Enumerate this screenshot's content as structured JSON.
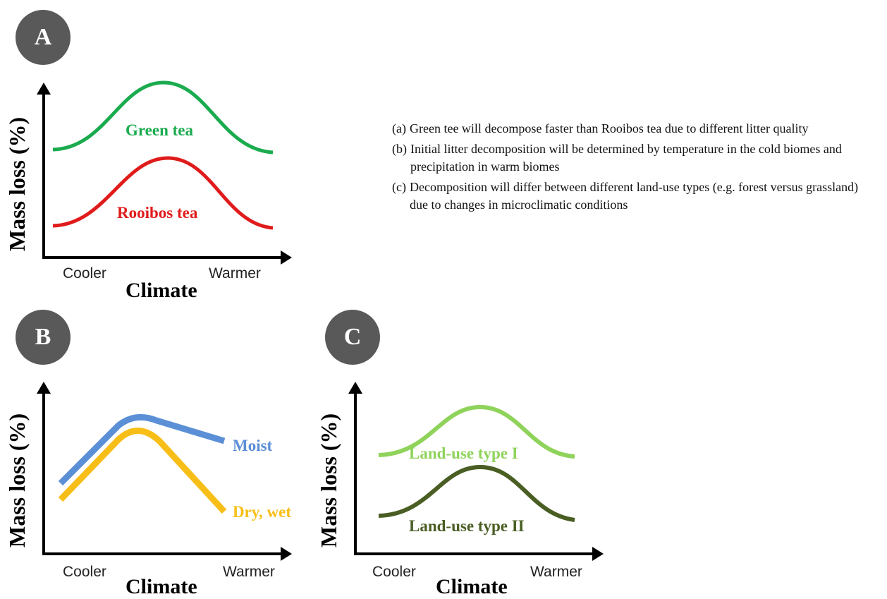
{
  "colors": {
    "green_tea": "#1aab4e",
    "rooibos_tea": "#e01b1b",
    "moist": "#5b8fd6",
    "dry_wet": "#f7be17",
    "land_use_1": "#8fd35b",
    "land_use_2": "#4a5e24",
    "badge": "#595959",
    "axis": "#000000"
  },
  "panels": {
    "a": {
      "badge": "A",
      "ylabel": "Mass loss (%)",
      "xlabel": "Climate",
      "x_ticks": [
        "Cooler",
        "Warmer"
      ],
      "curves": [
        {
          "label": "Green tea",
          "shape": "bell",
          "color": "green_tea"
        },
        {
          "label": "Rooibos tea",
          "shape": "bell",
          "color": "rooibos_tea"
        }
      ]
    },
    "b": {
      "badge": "B",
      "ylabel": "Mass loss (%)",
      "xlabel": "Climate",
      "x_ticks": [
        "Cooler",
        "Warmer"
      ],
      "curves": [
        {
          "label": "Moist",
          "shape": "rise-then-gentle-decline",
          "color": "moist"
        },
        {
          "label": "Dry, wet",
          "shape": "rise-then-steep-decline",
          "color": "dry_wet"
        }
      ]
    },
    "c": {
      "badge": "C",
      "ylabel": "Mass loss (%)",
      "xlabel": "Climate",
      "x_ticks": [
        "Cooler",
        "Warmer"
      ],
      "curves": [
        {
          "label": "Land-use type I",
          "shape": "bell",
          "color": "land_use_1"
        },
        {
          "label": "Land-use type II",
          "shape": "bell",
          "color": "land_use_2"
        }
      ]
    }
  },
  "hypotheses": [
    {
      "marker": "(a)",
      "text": "Green tee will decompose faster than Rooibos tea due to different litter quality"
    },
    {
      "marker": "(b)",
      "text": "Initial litter decomposition will be determined by temperature in the cold biomes and precipitation in warm biomes"
    },
    {
      "marker": "(c)",
      "text": "Decomposition will differ between different land-use types (e.g. forest versus grassland) due to changes in microclimatic conditions"
    }
  ]
}
